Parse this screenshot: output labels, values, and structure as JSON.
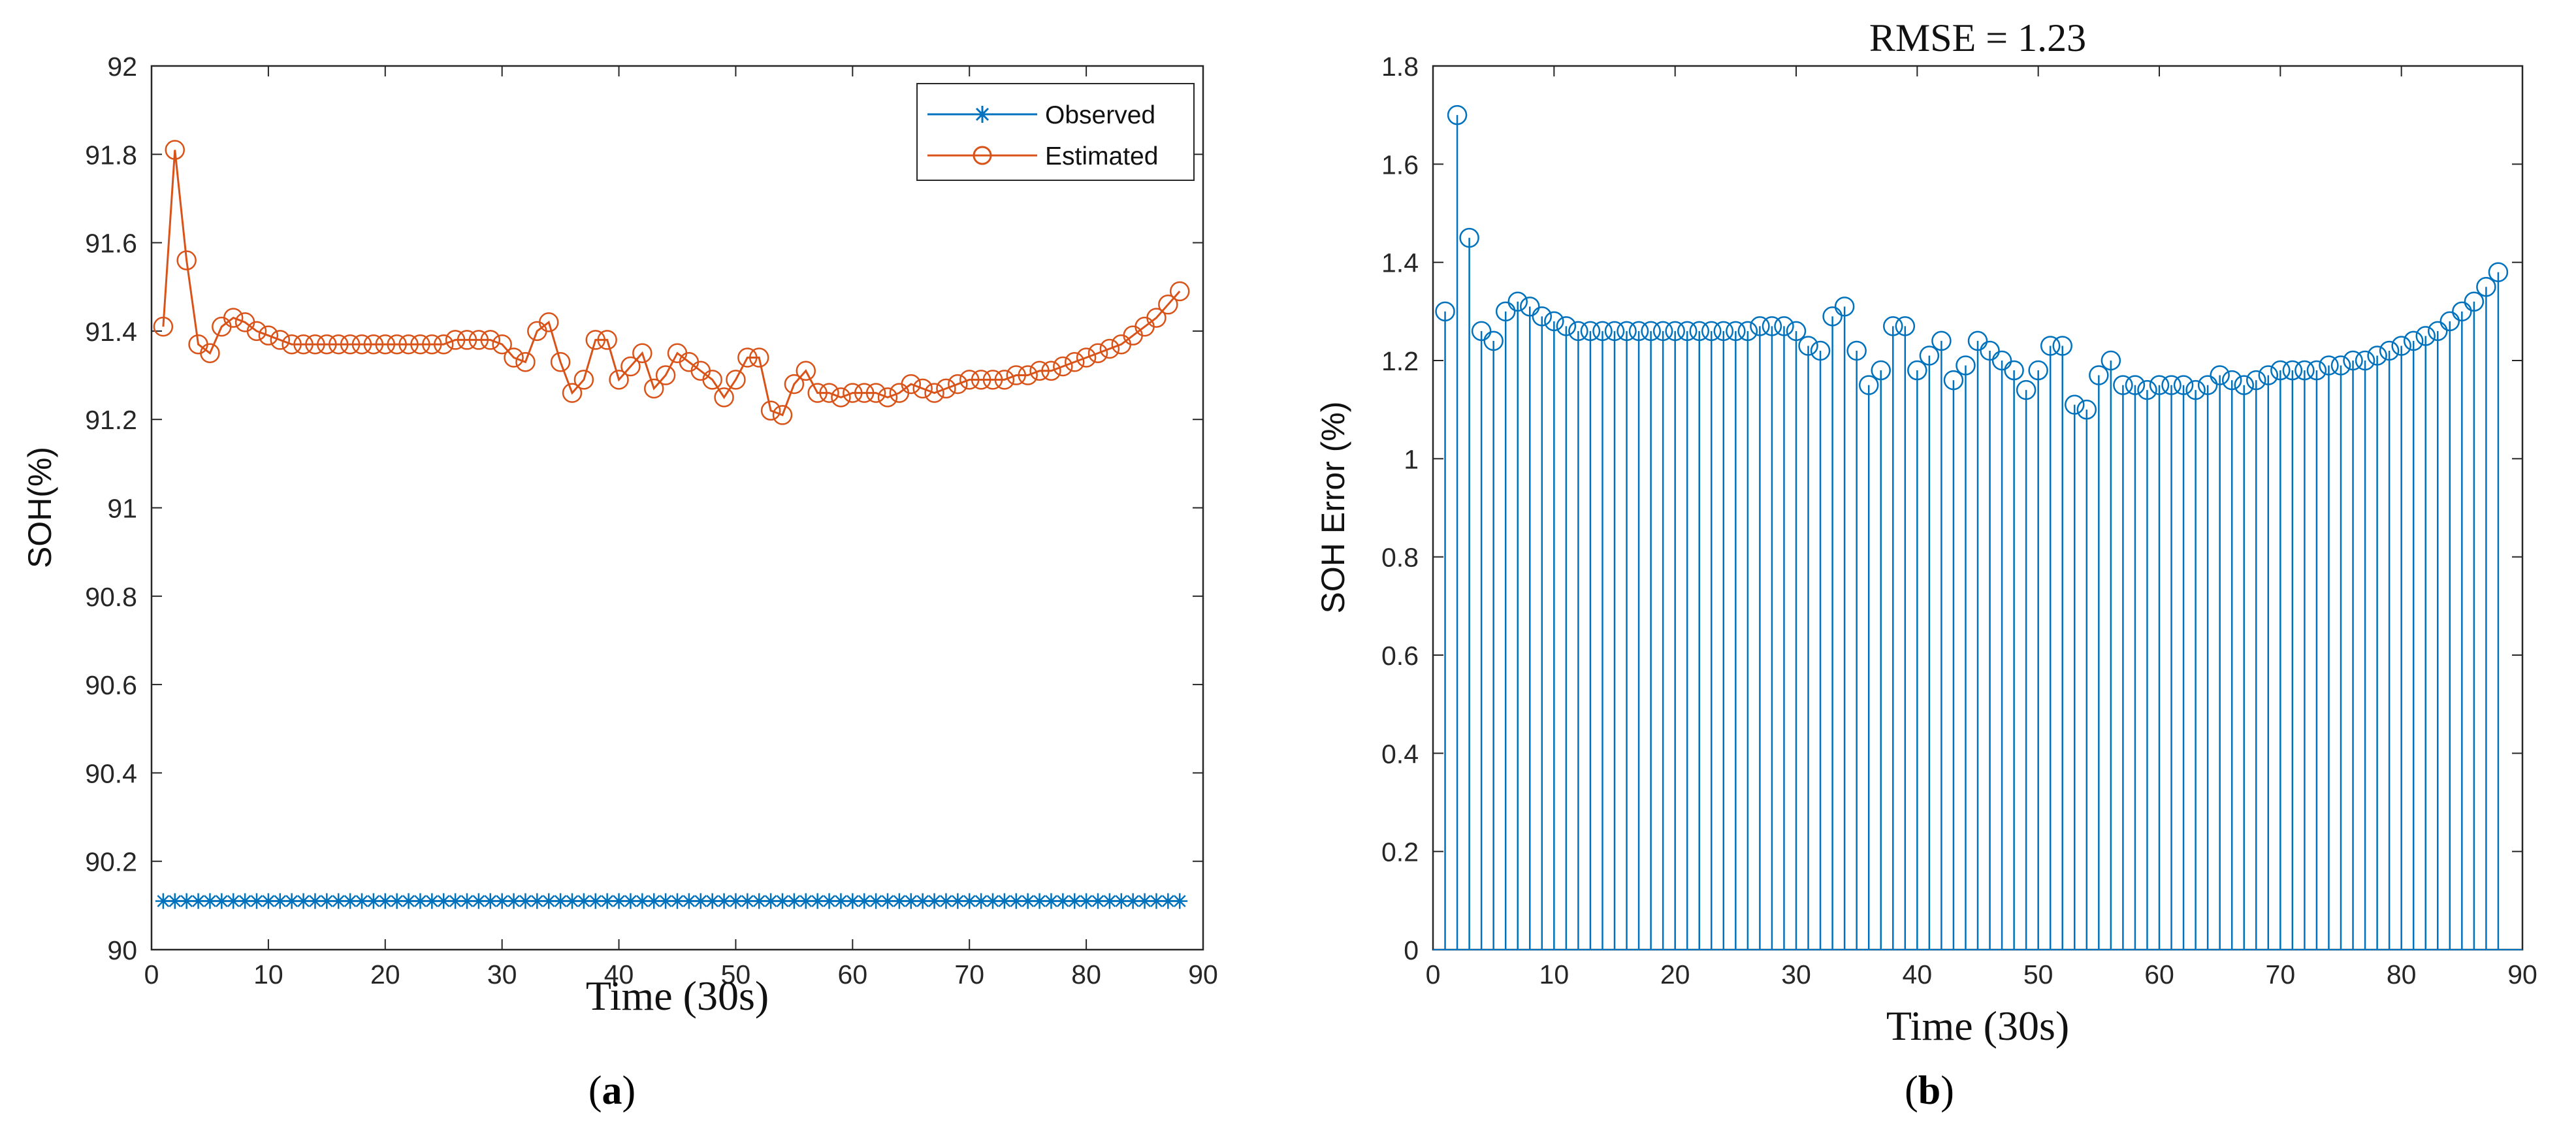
{
  "colors": {
    "observed": "#0072BD",
    "estimated": "#D95319",
    "stem": "#0072BD",
    "axis": "#262626"
  },
  "panels": {
    "a": {
      "open": "(",
      "letter": "a",
      "close": ")"
    },
    "b": {
      "open": "(",
      "letter": "b",
      "close": ")"
    }
  },
  "chart_data": [
    {
      "id": "a",
      "type": "line",
      "title": "",
      "xlabel": "Time (30s)",
      "ylabel": "SOH(%)",
      "xlim": [
        0,
        90
      ],
      "ylim": [
        90,
        92
      ],
      "xticks": [
        0,
        10,
        20,
        30,
        40,
        50,
        60,
        70,
        80,
        90
      ],
      "xtick_labels": [
        "0",
        "10",
        "20",
        "30",
        "40",
        "50",
        "60",
        "70",
        "80",
        "90"
      ],
      "yticks": [
        90,
        90.2,
        90.4,
        90.6,
        90.8,
        91,
        91.2,
        91.4,
        91.6,
        91.8,
        92
      ],
      "ytick_labels": [
        "90",
        "90.2",
        "90.4",
        "90.6",
        "90.8",
        "91",
        "91.2",
        "91.4",
        "91.6",
        "91.8",
        "92"
      ],
      "legend": {
        "position": "top-right",
        "entries": [
          "Observed",
          "Estimated"
        ]
      },
      "series": [
        {
          "name": "Observed",
          "marker": "asterisk",
          "color": "#0072BD",
          "x_start": 1,
          "x_end": 88,
          "constant_value": 90.11
        },
        {
          "name": "Estimated",
          "marker": "circle",
          "color": "#D95319",
          "x_start": 1,
          "values": [
            91.41,
            91.81,
            91.56,
            91.37,
            91.35,
            91.41,
            91.43,
            91.42,
            91.4,
            91.39,
            91.38,
            91.37,
            91.37,
            91.37,
            91.37,
            91.37,
            91.37,
            91.37,
            91.37,
            91.37,
            91.37,
            91.37,
            91.37,
            91.37,
            91.37,
            91.38,
            91.38,
            91.38,
            91.38,
            91.37,
            91.34,
            91.33,
            91.4,
            91.42,
            91.33,
            91.26,
            91.29,
            91.38,
            91.38,
            91.29,
            91.32,
            91.35,
            91.27,
            91.3,
            91.35,
            91.33,
            91.31,
            91.29,
            91.25,
            91.29,
            91.34,
            91.34,
            91.22,
            91.21,
            91.28,
            91.31,
            91.26,
            91.26,
            91.25,
            91.26,
            91.26,
            91.26,
            91.25,
            91.26,
            91.28,
            91.27,
            91.26,
            91.27,
            91.28,
            91.29,
            91.29,
            91.29,
            91.29,
            91.3,
            91.3,
            91.31,
            91.31,
            91.32,
            91.33,
            91.34,
            91.35,
            91.36,
            91.37,
            91.39,
            91.41,
            91.43,
            91.46,
            91.49
          ]
        }
      ]
    },
    {
      "id": "b",
      "type": "stem",
      "title": "RMSE = 1.23",
      "xlabel": "Time (30s)",
      "ylabel": "SOH Error (%)",
      "xlim": [
        0,
        90
      ],
      "ylim": [
        0,
        1.8
      ],
      "xticks": [
        0,
        10,
        20,
        30,
        40,
        50,
        60,
        70,
        80,
        90
      ],
      "xtick_labels": [
        "0",
        "10",
        "20",
        "30",
        "40",
        "50",
        "60",
        "70",
        "80",
        "90"
      ],
      "yticks": [
        0,
        0.2,
        0.4,
        0.6,
        0.8,
        1,
        1.2,
        1.4,
        1.6,
        1.8
      ],
      "ytick_labels": [
        "0",
        "0.2",
        "0.4",
        "0.6",
        "0.8",
        "1",
        "1.2",
        "1.4",
        "1.6",
        "1.8"
      ],
      "series": [
        {
          "name": "SOH Error",
          "marker": "circle",
          "color": "#0072BD",
          "x_start": 1,
          "values": [
            1.3,
            1.7,
            1.45,
            1.26,
            1.24,
            1.3,
            1.32,
            1.31,
            1.29,
            1.28,
            1.27,
            1.26,
            1.26,
            1.26,
            1.26,
            1.26,
            1.26,
            1.26,
            1.26,
            1.26,
            1.26,
            1.26,
            1.26,
            1.26,
            1.26,
            1.26,
            1.27,
            1.27,
            1.27,
            1.26,
            1.23,
            1.22,
            1.29,
            1.31,
            1.22,
            1.15,
            1.18,
            1.27,
            1.27,
            1.18,
            1.21,
            1.24,
            1.16,
            1.19,
            1.24,
            1.22,
            1.2,
            1.18,
            1.14,
            1.18,
            1.23,
            1.23,
            1.11,
            1.1,
            1.17,
            1.2,
            1.15,
            1.15,
            1.14,
            1.15,
            1.15,
            1.15,
            1.14,
            1.15,
            1.17,
            1.16,
            1.15,
            1.16,
            1.17,
            1.18,
            1.18,
            1.18,
            1.18,
            1.19,
            1.19,
            1.2,
            1.2,
            1.21,
            1.22,
            1.23,
            1.24,
            1.25,
            1.26,
            1.28,
            1.3,
            1.32,
            1.35,
            1.38
          ]
        }
      ]
    }
  ]
}
